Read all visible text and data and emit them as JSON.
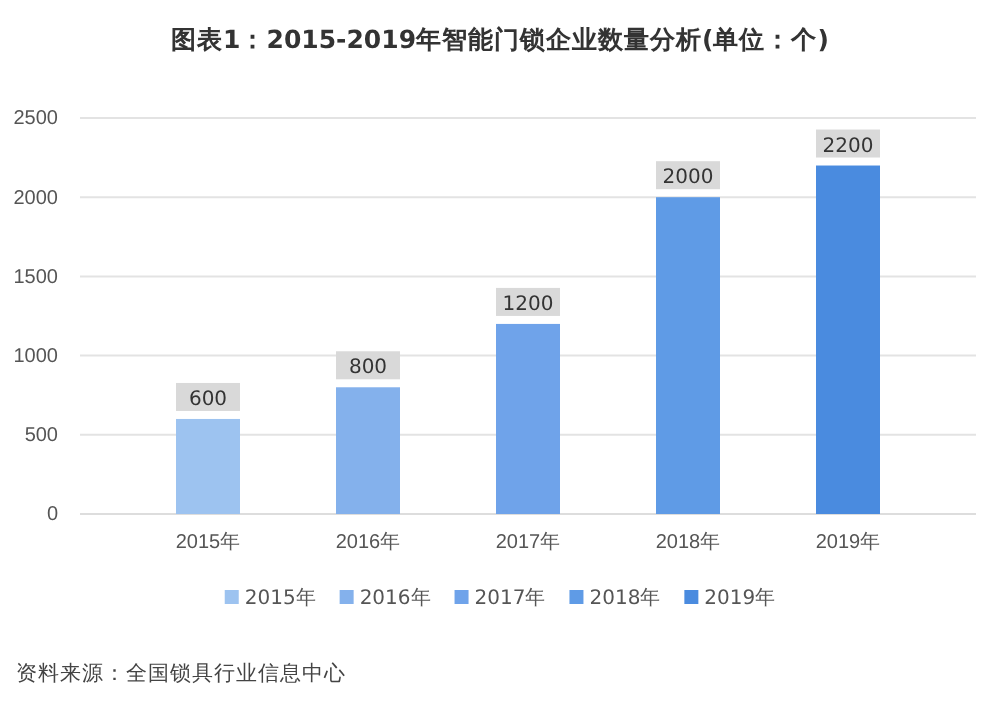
{
  "chart_data": {
    "type": "bar",
    "title": "图表1：2015-2019年智能门锁企业数量分析(单位：个)",
    "categories": [
      "2015年",
      "2016年",
      "2017年",
      "2018年",
      "2019年"
    ],
    "series": [
      {
        "name": "2015年",
        "color": "#9dc3f0",
        "values": [
          600,
          null,
          null,
          null,
          null
        ]
      },
      {
        "name": "2016年",
        "color": "#84b1ec",
        "values": [
          null,
          800,
          null,
          null,
          null
        ]
      },
      {
        "name": "2017年",
        "color": "#6fa3ea",
        "values": [
          null,
          null,
          1200,
          null,
          null
        ]
      },
      {
        "name": "2018年",
        "color": "#5f9be6",
        "values": [
          null,
          null,
          null,
          2000,
          null
        ]
      },
      {
        "name": "2019年",
        "color": "#4a8bdf",
        "values": [
          null,
          null,
          null,
          null,
          2200
        ]
      }
    ],
    "stacked": true,
    "ylim": [
      0,
      2500
    ],
    "yticks": [
      0,
      500,
      1000,
      1500,
      2000,
      2500
    ],
    "grid": "y",
    "legend": "bottom",
    "data_labels": true,
    "annotations": [
      "资料来源：全国锁具行业信息中心"
    ]
  }
}
